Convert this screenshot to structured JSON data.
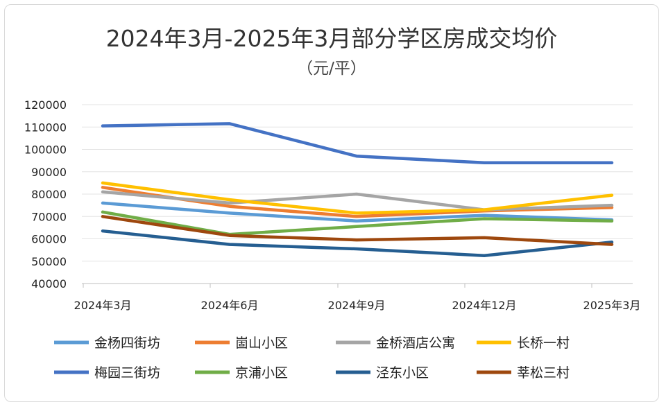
{
  "chart_data": {
    "type": "line",
    "title": "2024年3月-2025年3月部分学区房成交均价",
    "subtitle": "（元/平）",
    "categories": [
      "2024年3月",
      "2024年6月",
      "2024年9月",
      "2024年12月",
      "2025年3月"
    ],
    "ylim": [
      40000,
      120000
    ],
    "yticks": [
      "120000",
      "110000",
      "100000",
      "90000",
      "80000",
      "70000",
      "60000",
      "50000",
      "40000"
    ],
    "grid": true,
    "legend_position": "bottom",
    "series": [
      {
        "name": "金杨四街坊",
        "color": "#5b9bd5",
        "values": [
          76000,
          71500,
          68000,
          70500,
          68500
        ]
      },
      {
        "name": "崮山小区",
        "color": "#ed7d31",
        "values": [
          83000,
          74500,
          70000,
          72500,
          74000
        ]
      },
      {
        "name": "金桥酒店公寓",
        "color": "#a5a5a5",
        "values": [
          81000,
          76000,
          80000,
          73000,
          75000
        ]
      },
      {
        "name": "长桥一村",
        "color": "#ffc000",
        "values": [
          85000,
          77500,
          71500,
          73000,
          79500
        ]
      },
      {
        "name": "梅园三街坊",
        "color": "#4472c4",
        "values": [
          110500,
          111500,
          97000,
          94000,
          94000
        ]
      },
      {
        "name": "京浦小区",
        "color": "#70ad47",
        "values": [
          72000,
          62000,
          65500,
          69000,
          68000
        ]
      },
      {
        "name": "泾东小区",
        "color": "#255e91",
        "values": [
          63500,
          57500,
          55500,
          52500,
          58500
        ]
      },
      {
        "name": "莘松三村",
        "color": "#9e480e",
        "values": [
          70000,
          61500,
          59500,
          60500,
          57500
        ]
      }
    ]
  }
}
